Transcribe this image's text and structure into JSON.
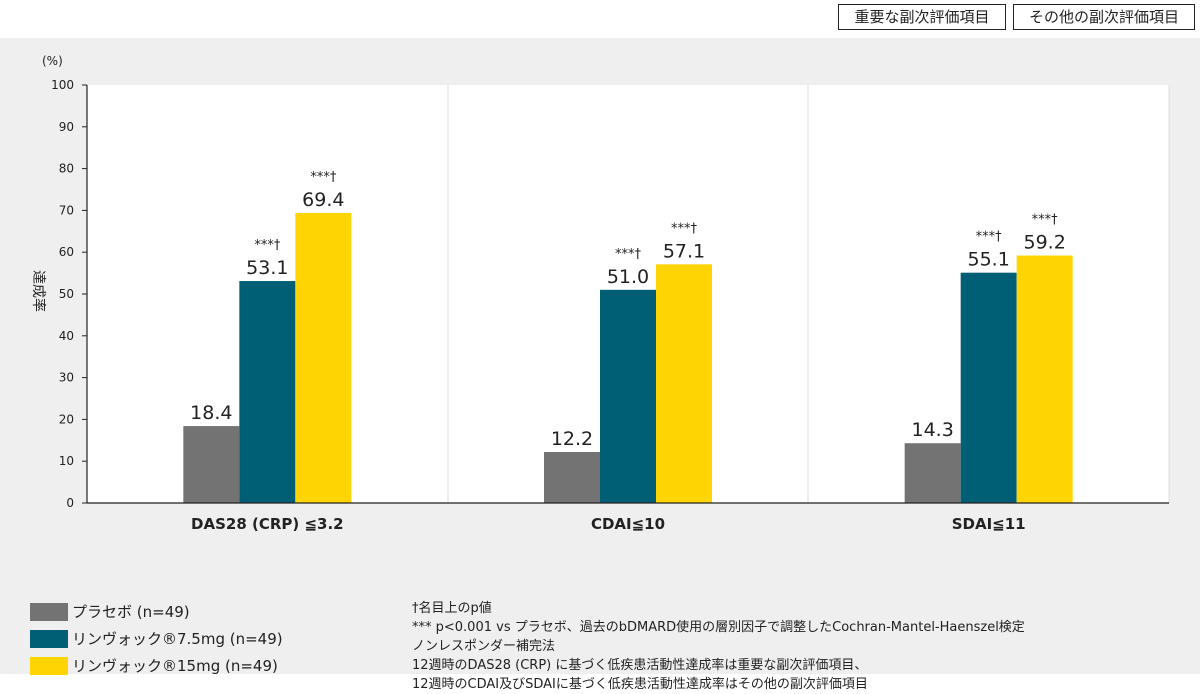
{
  "tags": {
    "primary": "重要な副次評価項目",
    "secondary": "その他の副次評価項目"
  },
  "chart_data": {
    "type": "bar",
    "ylabel": "達成率",
    "yunit": "(%)",
    "ylim": [
      0,
      100
    ],
    "yticks": [
      0,
      10,
      20,
      30,
      40,
      50,
      60,
      70,
      80,
      90,
      100
    ],
    "categories": [
      "DAS28 (CRP) ≦3.2",
      "CDAI≦10",
      "SDAI≦11"
    ],
    "series": [
      {
        "name": "プラセボ (n=49)",
        "color": "#737373",
        "values": [
          18.4,
          12.2,
          14.3
        ],
        "sig": [
          "",
          "",
          ""
        ]
      },
      {
        "name": "リンヴォック®7.5mg (n=49)",
        "color": "#005f75",
        "values": [
          53.1,
          51.0,
          55.1
        ],
        "sig": [
          "***†",
          "***†",
          "***†"
        ]
      },
      {
        "name": "リンヴォック®15mg (n=49)",
        "color": "#ffd400",
        "values": [
          69.4,
          57.1,
          59.2
        ],
        "sig": [
          "***†",
          "***†",
          "***†"
        ]
      }
    ],
    "grid": false,
    "legend": "bottom-left"
  },
  "notes": [
    "†名目上のp値",
    "*** p<0.001 vs プラセボ、過去のbDMARD使用の層別因子で調整したCochran-Mantel-Haenszel検定",
    "ノンレスポンダー補完法",
    "12週時のDAS28 (CRP) に基づく低疾患活動性達成率は重要な副次評価項目、",
    "12週時のCDAI及びSDAIに基づく低疾患活動性達成率はその他の副次評価項目"
  ]
}
